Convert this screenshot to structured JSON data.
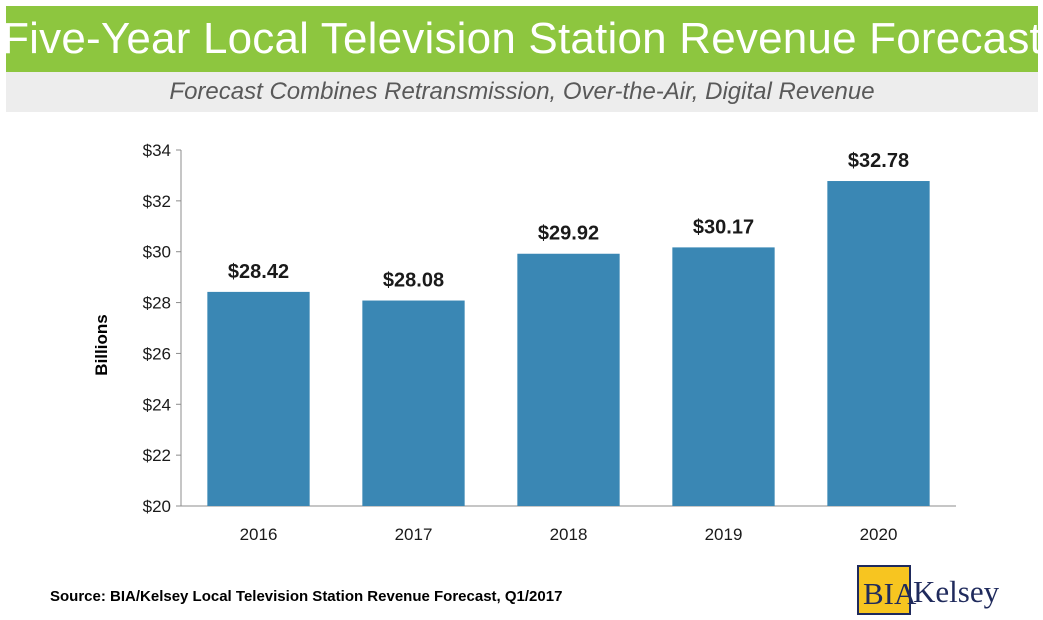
{
  "title": "Five-Year Local Television Station Revenue Forecast",
  "subtitle": "Forecast Combines Retransmission, Over-the-Air, Digital Revenue",
  "source": "Source: BIA/Kelsey Local Television Station Revenue Forecast, Q1/2017",
  "logo": {
    "part1": "BIA",
    "part2": "Kelsey"
  },
  "colors": {
    "title_bar": "#8dc63f",
    "bar": "#3a87b4"
  },
  "chart_data": {
    "type": "bar",
    "categories": [
      "2016",
      "2017",
      "2018",
      "2019",
      "2020"
    ],
    "values": [
      28.42,
      28.08,
      29.92,
      30.17,
      32.78
    ],
    "data_labels": [
      "$28.42",
      "$28.08",
      "$29.92",
      "$30.17",
      "$32.78"
    ],
    "ylabel": "Billions",
    "ylim": [
      20,
      34
    ],
    "yticks": [
      20,
      22,
      24,
      26,
      28,
      30,
      32,
      34
    ],
    "ytick_labels": [
      "$20",
      "$22",
      "$24",
      "$26",
      "$28",
      "$30",
      "$32",
      "$34"
    ],
    "grid": false,
    "legend": "none"
  }
}
